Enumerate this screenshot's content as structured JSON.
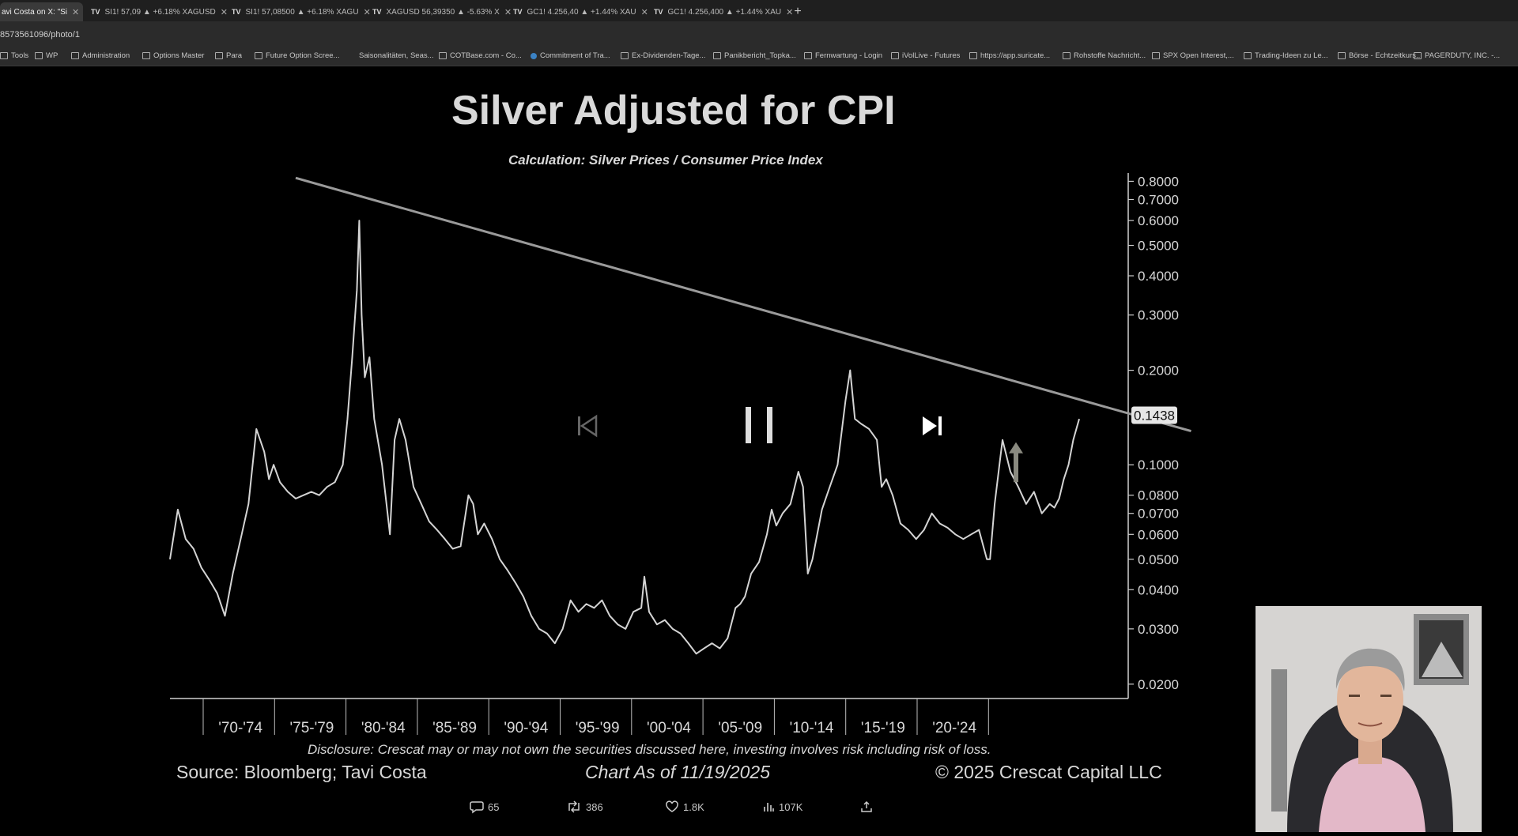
{
  "browser": {
    "tabs": [
      {
        "label": "avi Costa on X: \"Si",
        "active": true
      },
      {
        "label": "SI1! 57,09 ▲ +6.18% XAGUSD",
        "active": false
      },
      {
        "label": "SI1! 57,08500 ▲ +6.18% XAGU",
        "active": false
      },
      {
        "label": "XAGUSD 56,39350 ▲ -5.63% X",
        "active": false
      },
      {
        "label": "GC1! 4.256,40 ▲ +1.44% XAU",
        "active": false
      },
      {
        "label": "GC1! 4.256,400 ▲ +1.44% XAU",
        "active": false
      }
    ],
    "address": "8573561096/photo/1",
    "bookmarks": [
      {
        "label": "Tools",
        "icon": "folder-icon"
      },
      {
        "label": "WP",
        "icon": "folder-icon"
      },
      {
        "label": "Administration",
        "icon": "folder-icon"
      },
      {
        "label": "Options Master",
        "icon": "folder-icon"
      },
      {
        "label": "Para",
        "icon": "folder-icon"
      },
      {
        "label": "Future Option Scree...",
        "icon": "site-icon"
      },
      {
        "label": "Saisonalitäten, Seas...",
        "icon": "none"
      },
      {
        "label": "COTBase.com - Co...",
        "icon": "site-icon"
      },
      {
        "label": "Commitment of Tra...",
        "icon": "globe-icon"
      },
      {
        "label": "Ex-Dividenden-Tage...",
        "icon": "site-icon"
      },
      {
        "label": "Panikbericht_Topka...",
        "icon": "site-icon"
      },
      {
        "label": "Fernwartung - Login",
        "icon": "site-icon"
      },
      {
        "label": "iVolLive - Futures",
        "icon": "site-icon"
      },
      {
        "label": "https://app.suricate...",
        "icon": "site-icon"
      },
      {
        "label": "Rohstoffe Nachricht...",
        "icon": "site-icon"
      },
      {
        "label": "SPX Open Interest,...",
        "icon": "site-icon"
      },
      {
        "label": "Trading-Ideen zu Le...",
        "icon": "site-icon"
      },
      {
        "label": "Börse - Echtzeitkurs...",
        "icon": "site-icon"
      },
      {
        "label": "PAGERDUTY, INC. -...",
        "icon": "site-icon"
      }
    ]
  },
  "chart_title": "Silver Adjusted for CPI",
  "chart_subtitle": "Calculation: Silver Prices / Consumer Price Index",
  "current_value_label": "0.1438",
  "footer": {
    "disclosure": "Disclosure: Crescat may or may not own the securities discussed here, investing involves risk including risk of loss.",
    "source": "Source: Bloomberg; Tavi Costa",
    "as_of": "Chart As of 11/19/2025",
    "copyright": "© 2025 Crescat Capital LLC"
  },
  "tweet_actions": {
    "replies": "65",
    "reposts": "386",
    "likes": "1.8K",
    "views": "107K"
  },
  "video_controls": [
    "previous-icon",
    "pause-icon",
    "next-icon"
  ],
  "chart_data": {
    "type": "line",
    "title": "Silver Adjusted for CPI",
    "subtitle": "Calculation: Silver Prices / Consumer Price Index",
    "yscale": "log",
    "ylim": [
      0.018,
      0.85
    ],
    "y_ticks": [
      "0.8000",
      "0.7000",
      "0.6000",
      "0.5000",
      "0.4000",
      "0.3000",
      "0.2000",
      "0.1000",
      "0.0800",
      "0.0700",
      "0.0600",
      "0.0500",
      "0.0400",
      "0.0300",
      "0.0200"
    ],
    "y_tick_values": [
      0.8,
      0.7,
      0.6,
      0.5,
      0.4,
      0.3,
      0.2,
      0.1,
      0.08,
      0.07,
      0.06,
      0.05,
      0.04,
      0.03,
      0.02
    ],
    "x_ticks": [
      "'70-'74",
      "'75-'79",
      "'80-'84",
      "'85-'89",
      "'90-'94",
      "'95-'99",
      "'00-'04",
      "'05-'09",
      "'10-'14",
      "'15-'19",
      "'20-'24"
    ],
    "xlim": [
      1968,
      2029
    ],
    "series": [
      {
        "x": [
          1968.0,
          1968.5,
          1969.0,
          1969.5,
          1970.0,
          1970.5,
          1971.0,
          1971.5,
          1972.0,
          1972.5,
          1973.0,
          1973.5,
          1974.0,
          1974.3,
          1974.6,
          1975.0,
          1975.5,
          1976.0,
          1976.5,
          1977.0,
          1977.5,
          1978.0,
          1978.5,
          1979.0,
          1979.3,
          1979.6,
          1979.9,
          1980.05,
          1980.2,
          1980.4,
          1980.7,
          1981.0,
          1981.5,
          1982.0,
          1982.3,
          1982.6,
          1983.0,
          1983.5,
          1984.0,
          1984.5,
          1985.0,
          1985.5,
          1986.0,
          1986.5,
          1987.0,
          1987.3,
          1987.6,
          1988.0,
          1988.5,
          1989.0,
          1989.5,
          1990.0,
          1990.5,
          1991.0,
          1991.5,
          1992.0,
          1992.5,
          1993.0,
          1993.5,
          1994.0,
          1994.5,
          1995.0,
          1995.5,
          1996.0,
          1996.5,
          1997.0,
          1997.5,
          1998.0,
          1998.2,
          1998.5,
          1999.0,
          1999.5,
          2000.0,
          2000.5,
          2001.0,
          2001.5,
          2002.0,
          2002.5,
          2003.0,
          2003.5,
          2004.0,
          2004.3,
          2004.6,
          2005.0,
          2005.5,
          2006.0,
          2006.3,
          2006.6,
          2007.0,
          2007.5,
          2008.0,
          2008.3,
          2008.6,
          2008.9,
          2009.2,
          2009.5,
          2010.0,
          2010.5,
          2011.0,
          2011.3,
          2011.6,
          2012.0,
          2012.5,
          2013.0,
          2013.3,
          2013.6,
          2014.0,
          2014.5,
          2015.0,
          2015.5,
          2016.0,
          2016.5,
          2017.0,
          2017.5,
          2018.0,
          2018.5,
          2019.0,
          2019.5,
          2020.0,
          2020.2,
          2020.5,
          2020.8,
          2021.0,
          2021.5,
          2022.0,
          2022.5,
          2023.0,
          2023.5,
          2024.0,
          2024.3,
          2024.6,
          2024.9,
          2025.2,
          2025.5,
          2025.88
        ],
        "values": [
          0.05,
          0.072,
          0.058,
          0.054,
          0.047,
          0.043,
          0.039,
          0.033,
          0.045,
          0.058,
          0.075,
          0.13,
          0.11,
          0.09,
          0.1,
          0.088,
          0.082,
          0.078,
          0.08,
          0.082,
          0.08,
          0.085,
          0.088,
          0.1,
          0.14,
          0.22,
          0.36,
          0.6,
          0.3,
          0.19,
          0.22,
          0.14,
          0.1,
          0.06,
          0.12,
          0.14,
          0.12,
          0.085,
          0.075,
          0.066,
          0.062,
          0.058,
          0.054,
          0.055,
          0.08,
          0.075,
          0.06,
          0.065,
          0.058,
          0.05,
          0.046,
          0.042,
          0.038,
          0.033,
          0.03,
          0.029,
          0.027,
          0.03,
          0.037,
          0.034,
          0.036,
          0.035,
          0.037,
          0.033,
          0.031,
          0.03,
          0.034,
          0.035,
          0.044,
          0.034,
          0.031,
          0.032,
          0.03,
          0.029,
          0.027,
          0.025,
          0.026,
          0.027,
          0.026,
          0.028,
          0.035,
          0.036,
          0.038,
          0.045,
          0.049,
          0.06,
          0.072,
          0.064,
          0.07,
          0.075,
          0.095,
          0.085,
          0.045,
          0.05,
          0.06,
          0.072,
          0.085,
          0.1,
          0.16,
          0.2,
          0.14,
          0.135,
          0.13,
          0.12,
          0.085,
          0.09,
          0.08,
          0.065,
          0.062,
          0.058,
          0.062,
          0.07,
          0.065,
          0.063,
          0.06,
          0.058,
          0.06,
          0.062,
          0.05,
          0.05,
          0.075,
          0.1,
          0.12,
          0.095,
          0.085,
          0.075,
          0.082,
          0.07,
          0.075,
          0.073,
          0.078,
          0.09,
          0.1,
          0.12,
          0.14
        ]
      }
    ],
    "trendline": {
      "x": [
        1976.0,
        2033.0
      ],
      "y": [
        0.82,
        0.128
      ]
    },
    "grid": false,
    "annotation_arrow": "up"
  }
}
